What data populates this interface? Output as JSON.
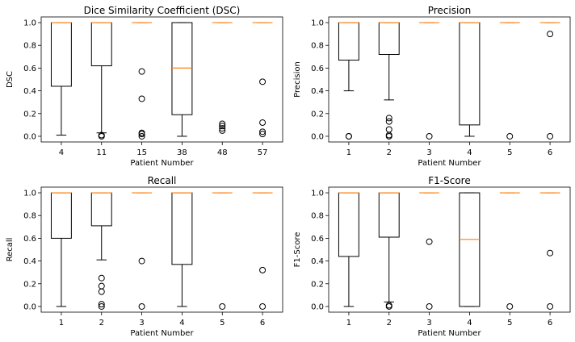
{
  "chart_data": [
    {
      "type": "box",
      "title": "Dice Similarity Coefficient (DSC)",
      "xlabel": "Patient Number",
      "ylabel": "DSC",
      "ylim": [
        -0.05,
        1.05
      ],
      "yticks": [
        "0.0",
        "0.2",
        "0.4",
        "0.6",
        "0.8",
        "1.0"
      ],
      "categories": [
        "4",
        "11",
        "15",
        "38",
        "48",
        "57"
      ],
      "boxes": [
        {
          "whislo": 0.01,
          "q1": 0.44,
          "med": 1.0,
          "q3": 1.0,
          "whishi": 1.0,
          "fliers": []
        },
        {
          "whislo": 0.03,
          "q1": 0.62,
          "med": 1.0,
          "q3": 1.0,
          "whishi": 1.0,
          "fliers": [
            0.01,
            0.0
          ]
        },
        {
          "whislo": 1.0,
          "q1": 1.0,
          "med": 1.0,
          "q3": 1.0,
          "whishi": 1.0,
          "fliers": [
            0.57,
            0.33,
            0.03,
            0.02,
            0.0
          ]
        },
        {
          "whislo": 0.0,
          "q1": 0.19,
          "med": 0.6,
          "q3": 1.0,
          "whishi": 1.0,
          "fliers": []
        },
        {
          "whislo": 1.0,
          "q1": 1.0,
          "med": 1.0,
          "q3": 1.0,
          "whishi": 1.0,
          "fliers": [
            0.11,
            0.09,
            0.07,
            0.05
          ]
        },
        {
          "whislo": 1.0,
          "q1": 1.0,
          "med": 1.0,
          "q3": 1.0,
          "whishi": 1.0,
          "fliers": [
            0.48,
            0.12,
            0.04,
            0.02
          ]
        }
      ]
    },
    {
      "type": "box",
      "title": "Precision",
      "xlabel": "Patient Number",
      "ylabel": "Precision",
      "ylim": [
        -0.05,
        1.05
      ],
      "yticks": [
        "0.0",
        "0.2",
        "0.4",
        "0.6",
        "0.8",
        "1.0"
      ],
      "categories": [
        "1",
        "2",
        "3",
        "4",
        "5",
        "6"
      ],
      "boxes": [
        {
          "whislo": 0.4,
          "q1": 0.67,
          "med": 1.0,
          "q3": 1.0,
          "whishi": 1.0,
          "fliers": [
            0.0,
            0.0
          ]
        },
        {
          "whislo": 0.32,
          "q1": 0.72,
          "med": 1.0,
          "q3": 1.0,
          "whishi": 1.0,
          "fliers": [
            0.16,
            0.13,
            0.06,
            0.01,
            0.0
          ]
        },
        {
          "whislo": 1.0,
          "q1": 1.0,
          "med": 1.0,
          "q3": 1.0,
          "whishi": 1.0,
          "fliers": [
            0.0
          ]
        },
        {
          "whislo": 0.0,
          "q1": 0.1,
          "med": 1.0,
          "q3": 1.0,
          "whishi": 1.0,
          "fliers": []
        },
        {
          "whislo": 1.0,
          "q1": 1.0,
          "med": 1.0,
          "q3": 1.0,
          "whishi": 1.0,
          "fliers": [
            0.0
          ]
        },
        {
          "whislo": 1.0,
          "q1": 1.0,
          "med": 1.0,
          "q3": 1.0,
          "whishi": 1.0,
          "fliers": [
            0.9,
            0.0
          ]
        }
      ]
    },
    {
      "type": "box",
      "title": "Recall",
      "xlabel": "Patient Number",
      "ylabel": "Recall",
      "ylim": [
        -0.05,
        1.05
      ],
      "yticks": [
        "0.0",
        "0.2",
        "0.4",
        "0.6",
        "0.8",
        "1.0"
      ],
      "categories": [
        "1",
        "2",
        "3",
        "4",
        "5",
        "6"
      ],
      "boxes": [
        {
          "whislo": 0.0,
          "q1": 0.6,
          "med": 1.0,
          "q3": 1.0,
          "whishi": 1.0,
          "fliers": []
        },
        {
          "whislo": 0.41,
          "q1": 0.71,
          "med": 1.0,
          "q3": 1.0,
          "whishi": 1.0,
          "fliers": [
            0.25,
            0.18,
            0.13,
            0.02,
            0.0
          ]
        },
        {
          "whislo": 1.0,
          "q1": 1.0,
          "med": 1.0,
          "q3": 1.0,
          "whishi": 1.0,
          "fliers": [
            0.4,
            0.0
          ]
        },
        {
          "whislo": 0.0,
          "q1": 0.37,
          "med": 1.0,
          "q3": 1.0,
          "whishi": 1.0,
          "fliers": []
        },
        {
          "whislo": 1.0,
          "q1": 1.0,
          "med": 1.0,
          "q3": 1.0,
          "whishi": 1.0,
          "fliers": [
            0.0
          ]
        },
        {
          "whislo": 1.0,
          "q1": 1.0,
          "med": 1.0,
          "q3": 1.0,
          "whishi": 1.0,
          "fliers": [
            0.32,
            0.0
          ]
        }
      ]
    },
    {
      "type": "box",
      "title": "F1-Score",
      "xlabel": "Patient Number",
      "ylabel": "F1-Score",
      "ylim": [
        -0.05,
        1.05
      ],
      "yticks": [
        "0.0",
        "0.2",
        "0.4",
        "0.6",
        "0.8",
        "1.0"
      ],
      "categories": [
        "1",
        "2",
        "3",
        "4",
        "5",
        "6"
      ],
      "boxes": [
        {
          "whislo": 0.0,
          "q1": 0.44,
          "med": 1.0,
          "q3": 1.0,
          "whishi": 1.0,
          "fliers": []
        },
        {
          "whislo": 0.04,
          "q1": 0.61,
          "med": 1.0,
          "q3": 1.0,
          "whishi": 1.0,
          "fliers": [
            0.01,
            0.0
          ]
        },
        {
          "whislo": 1.0,
          "q1": 1.0,
          "med": 1.0,
          "q3": 1.0,
          "whishi": 1.0,
          "fliers": [
            0.57,
            0.0
          ]
        },
        {
          "whislo": 0.0,
          "q1": 0.0,
          "med": 0.59,
          "q3": 1.0,
          "whishi": 1.0,
          "fliers": []
        },
        {
          "whislo": 1.0,
          "q1": 1.0,
          "med": 1.0,
          "q3": 1.0,
          "whishi": 1.0,
          "fliers": [
            0.0
          ]
        },
        {
          "whislo": 1.0,
          "q1": 1.0,
          "med": 1.0,
          "q3": 1.0,
          "whishi": 1.0,
          "fliers": [
            0.47,
            0.0
          ]
        }
      ]
    }
  ],
  "colors": {
    "box_edge": "#000000",
    "median": "#ff7f0e",
    "flier_edge": "#000000",
    "background": "#ffffff"
  }
}
